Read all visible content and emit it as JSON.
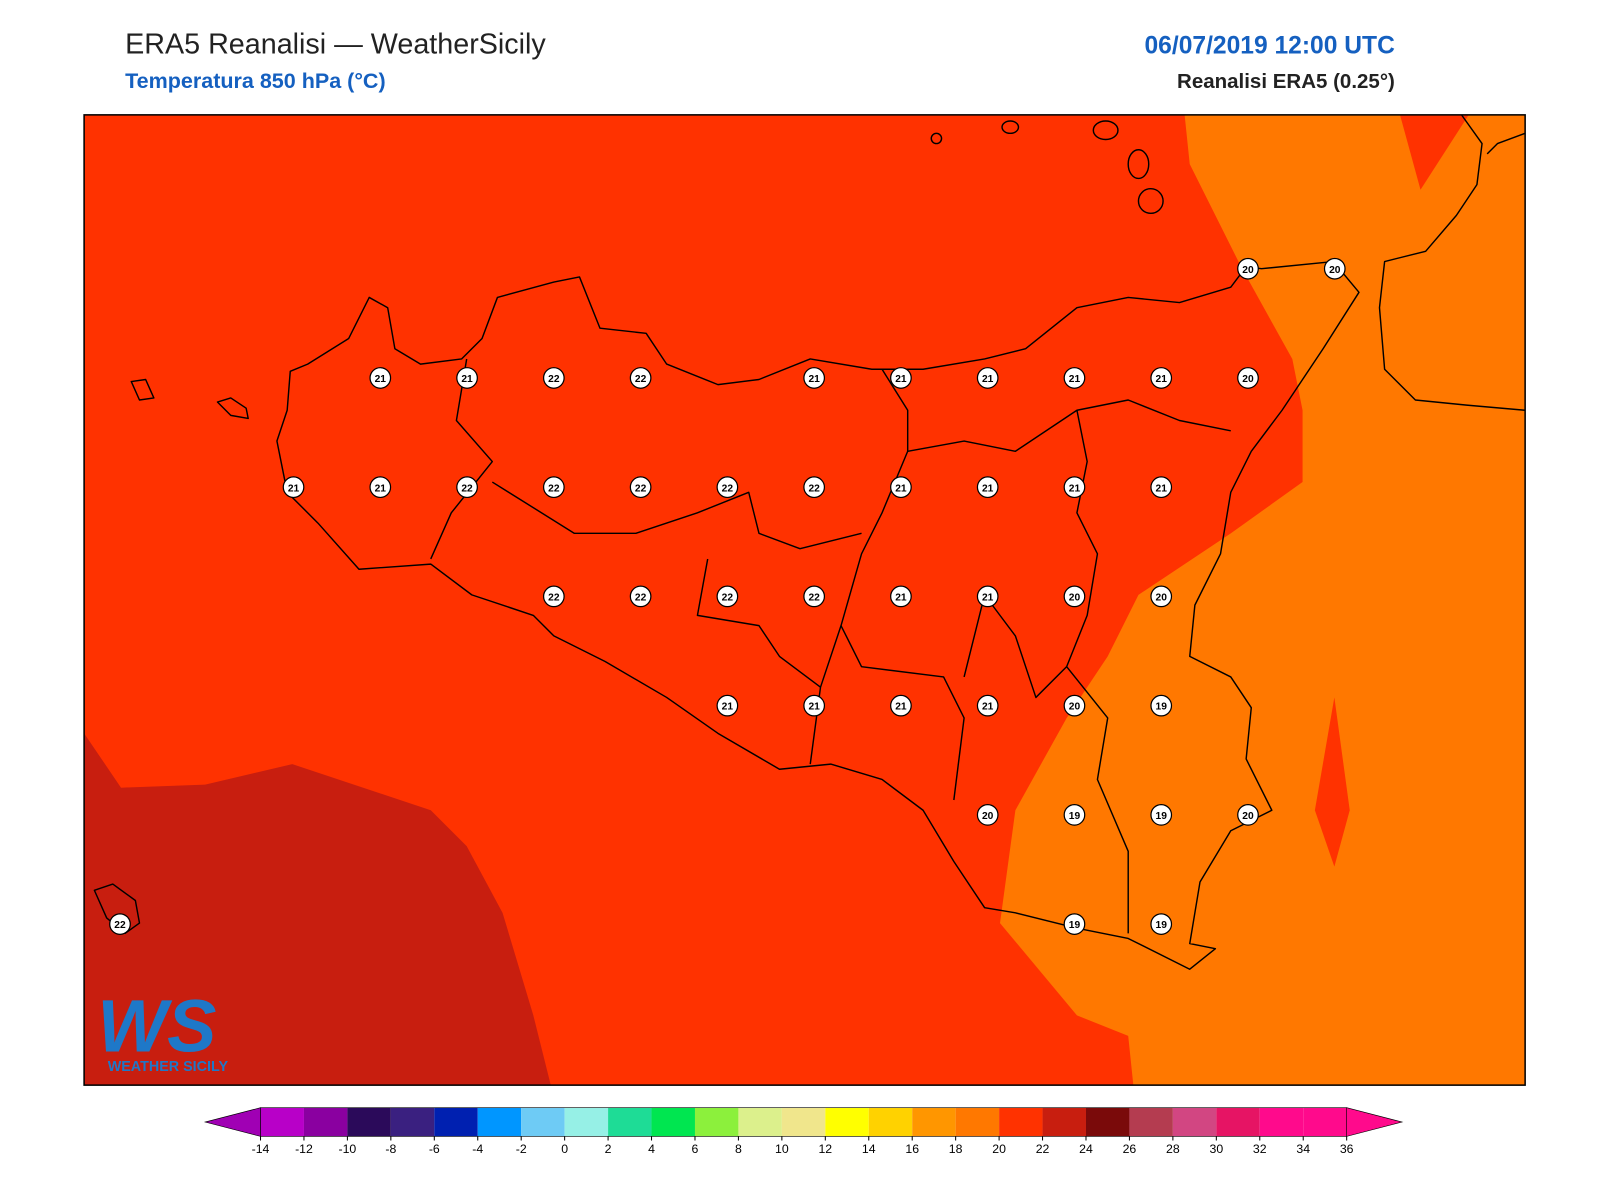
{
  "header": {
    "title": "ERA5 Reanalisi — WeatherSicily",
    "subtitle": "Temperatura 850 hPa (°C)",
    "date": "06/07/2019 12:00 UTC",
    "source": "Reanalisi ERA5 (0.25°)"
  },
  "stations": {
    "rows": [
      [
        null,
        null,
        null,
        null,
        null,
        null,
        null,
        null,
        null,
        null,
        null,
        null,
        null,
        20,
        20
      ],
      [
        null,
        null,
        null,
        21,
        21,
        22,
        22,
        null,
        21,
        21,
        21,
        21,
        21,
        20,
        null
      ],
      [
        null,
        null,
        21,
        21,
        22,
        22,
        22,
        22,
        22,
        21,
        21,
        21,
        21,
        null,
        null
      ],
      [
        null,
        null,
        null,
        null,
        null,
        22,
        22,
        22,
        22,
        21,
        21,
        20,
        20,
        null,
        null
      ],
      [
        null,
        null,
        null,
        null,
        null,
        null,
        null,
        21,
        21,
        21,
        21,
        20,
        19,
        null,
        null
      ],
      [
        null,
        null,
        null,
        null,
        null,
        null,
        null,
        null,
        null,
        null,
        20,
        19,
        19,
        20,
        null
      ],
      [
        22,
        null,
        null,
        null,
        null,
        null,
        null,
        null,
        null,
        null,
        null,
        19,
        19,
        null,
        null
      ]
    ]
  },
  "colorbar": {
    "ticks": [
      -14,
      -12,
      -10,
      -8,
      -6,
      -4,
      -2,
      0,
      2,
      4,
      6,
      8,
      10,
      12,
      14,
      16,
      18,
      20,
      22,
      24,
      26,
      28,
      30,
      32,
      34,
      36
    ],
    "colors": [
      "#b800c8",
      "#8a00a0",
      "#2b0a5a",
      "#3a2080",
      "#0020b0",
      "#0096ff",
      "#6ecbf5",
      "#96f0e6",
      "#1edc96",
      "#00e650",
      "#8cf03c",
      "#dcf08c",
      "#f0e68c",
      "#ffff00",
      "#ffd200",
      "#ff9600",
      "#ff7800",
      "#ff3200",
      "#c81e0f",
      "#7a0a0a",
      "#b43c50",
      "#d24682",
      "#e61464",
      "#ff0a8c",
      "#ff0a8c"
    ],
    "under_color": "#a000b4",
    "over_color": "#ff0a8c"
  },
  "logo": {
    "mark": "WS",
    "text": "WEATHER SICILY"
  }
}
